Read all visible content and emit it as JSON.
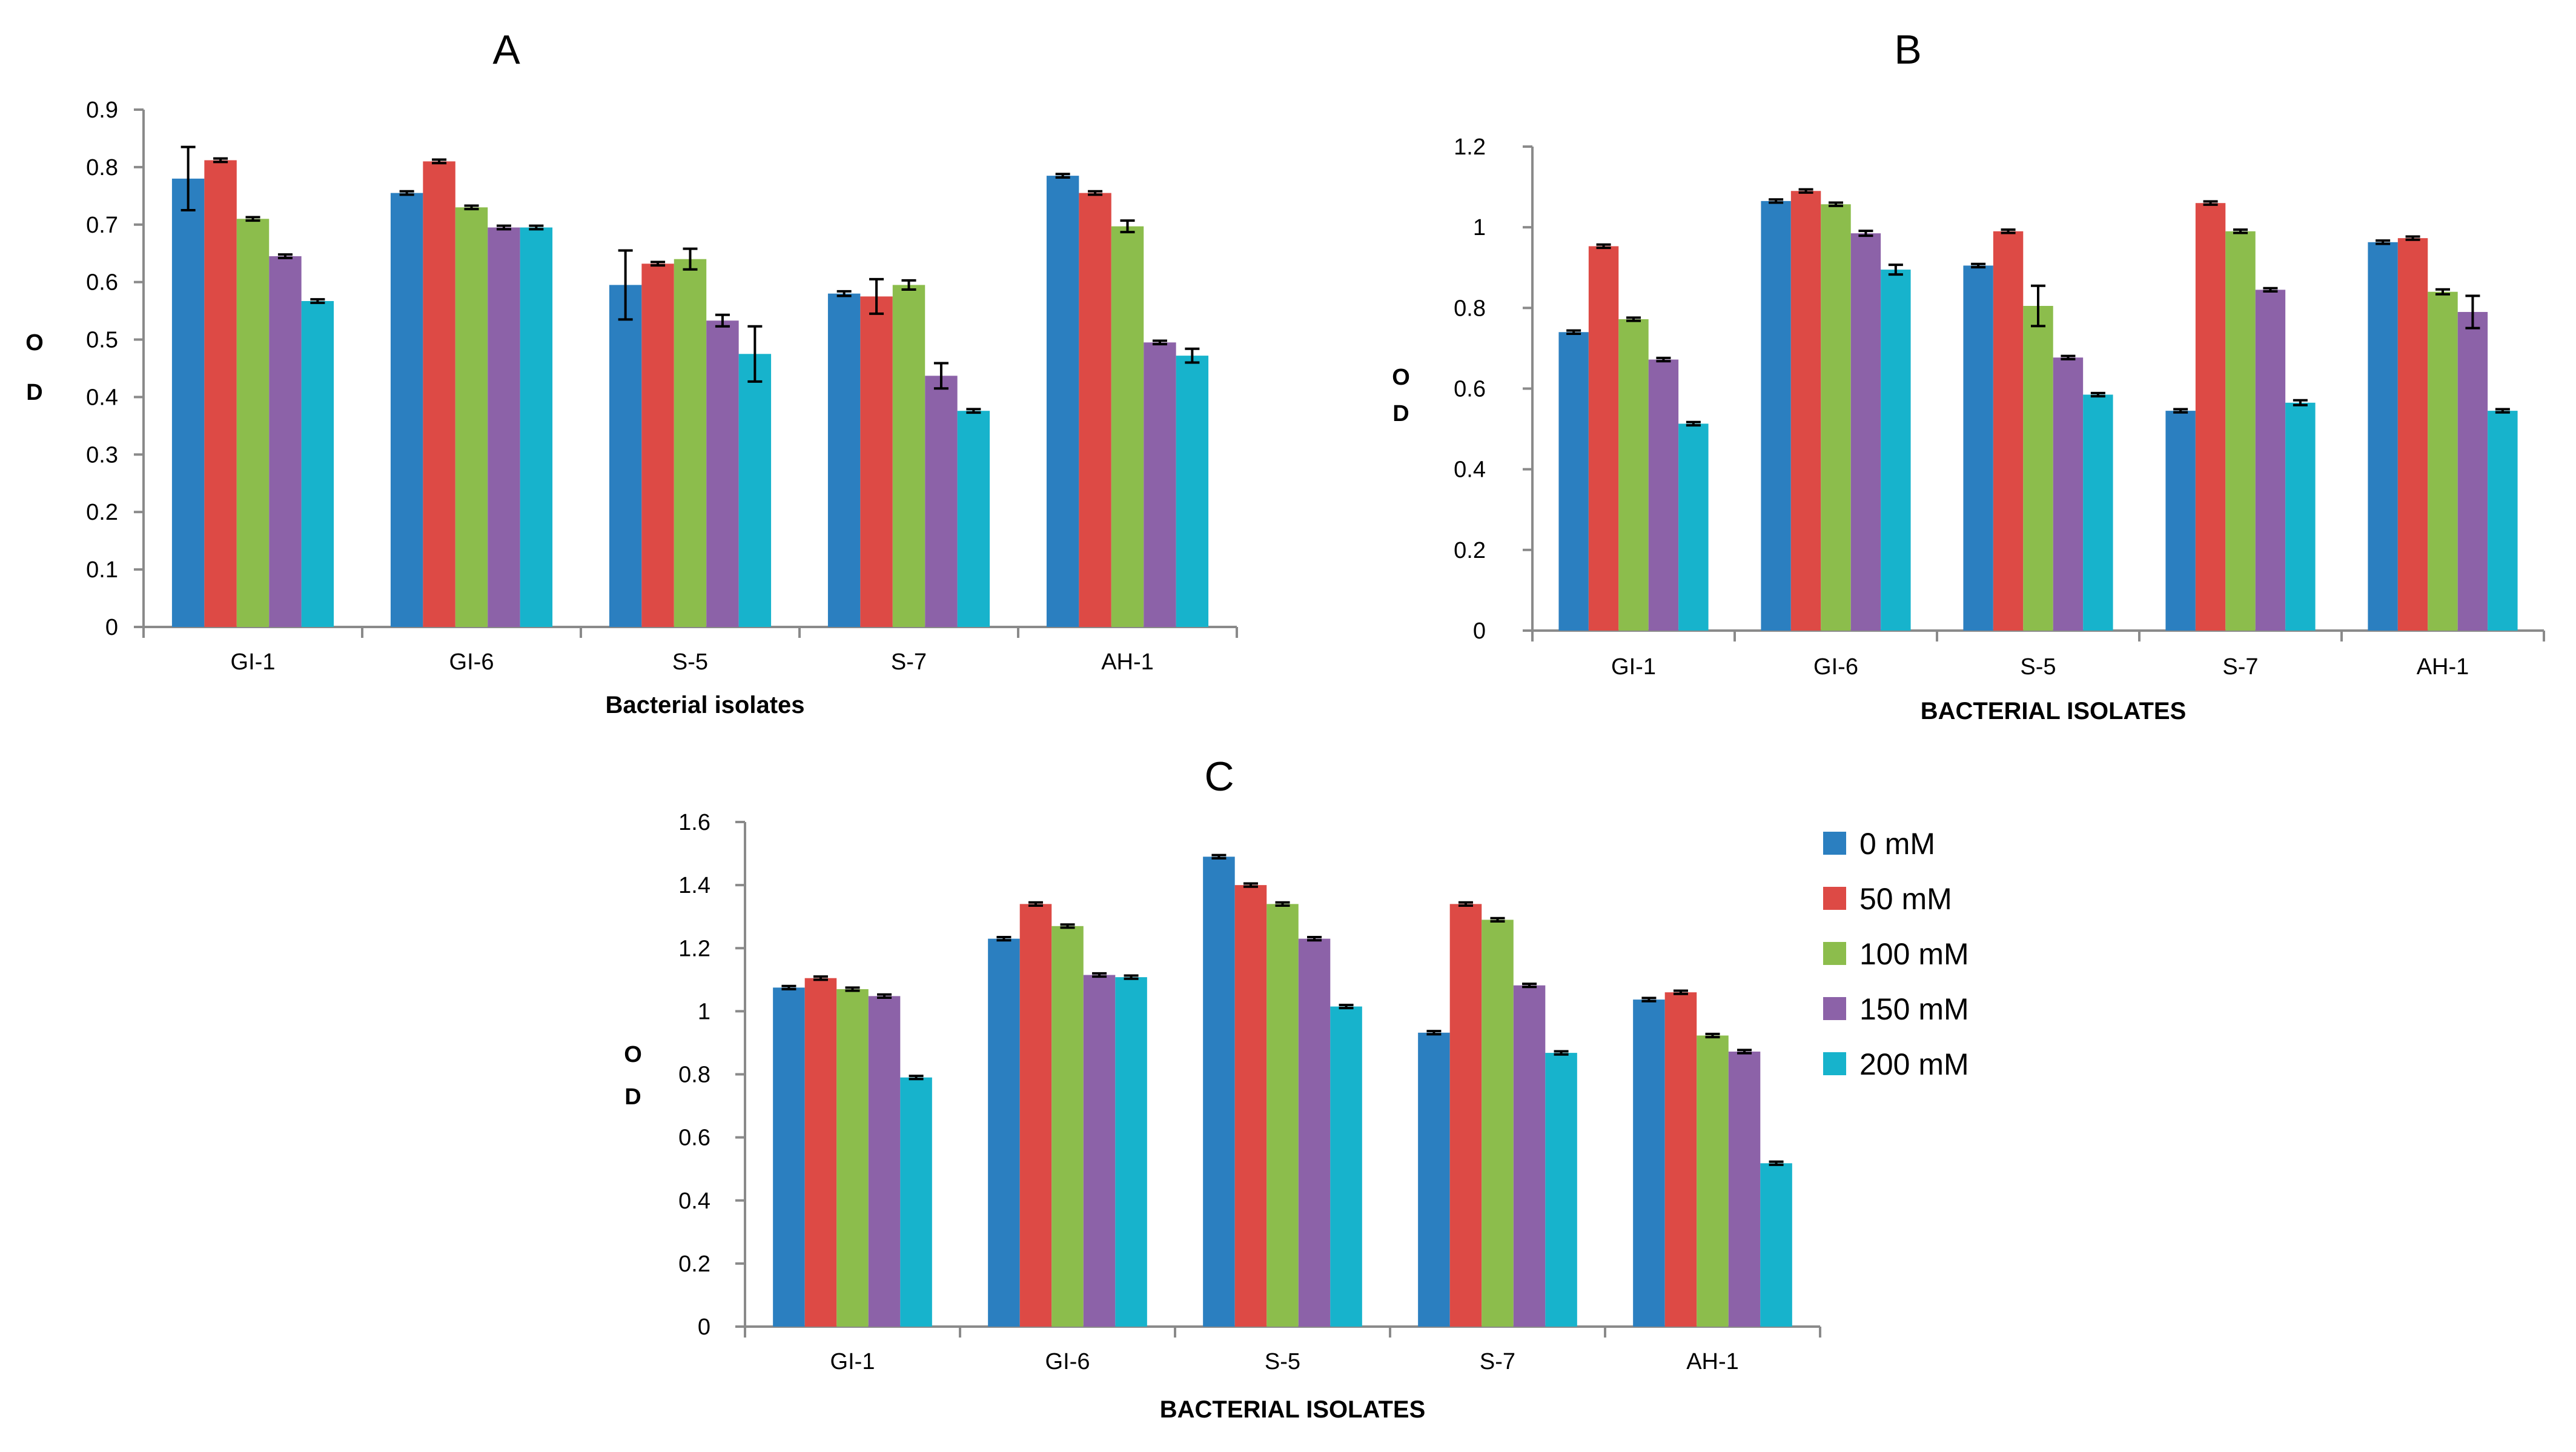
{
  "colors": {
    "series": [
      "#2b7fc0",
      "#dd4a45",
      "#8cbd4c",
      "#8c62a8",
      "#17b3cc"
    ],
    "axis": "#8a8a8a",
    "errorbar": "#000000"
  },
  "legend": {
    "placement": "right of panel C",
    "items": [
      "0 mM",
      "50 mM",
      "100 mM",
      "150 mM",
      "200 mM"
    ]
  },
  "chart_data": [
    {
      "panel": "A",
      "type": "bar",
      "xlabel": "Bacterial isolates",
      "ylabel": [
        "O",
        "D"
      ],
      "ylim": [
        0,
        0.9
      ],
      "yticks": [
        "0",
        "0.1",
        "0.2",
        "0.3",
        "0.4",
        "0.5",
        "0.6",
        "0.7",
        "0.8",
        "0.9"
      ],
      "categories": [
        "GI-1",
        "GI-6",
        "S-5",
        "S-7",
        "AH-1"
      ],
      "series": [
        {
          "name": "0 mM",
          "values": [
            0.78,
            0.755,
            0.595,
            0.58,
            0.785
          ],
          "errors": [
            0.055,
            0.003,
            0.06,
            0.004,
            0.003
          ]
        },
        {
          "name": "50 mM",
          "values": [
            0.812,
            0.81,
            0.632,
            0.575,
            0.755
          ],
          "errors": [
            0.003,
            0.003,
            0.003,
            0.03,
            0.003
          ]
        },
        {
          "name": "100 mM",
          "values": [
            0.71,
            0.73,
            0.64,
            0.595,
            0.697
          ],
          "errors": [
            0.003,
            0.003,
            0.018,
            0.008,
            0.01
          ]
        },
        {
          "name": "150 mM",
          "values": [
            0.645,
            0.695,
            0.533,
            0.437,
            0.495
          ],
          "errors": [
            0.003,
            0.003,
            0.01,
            0.022,
            0.003
          ]
        },
        {
          "name": "200 mM",
          "values": [
            0.567,
            0.695,
            0.475,
            0.376,
            0.472
          ],
          "errors": [
            0.003,
            0.003,
            0.048,
            0.003,
            0.012
          ]
        }
      ]
    },
    {
      "panel": "B",
      "type": "bar",
      "xlabel": "BACTERIAL ISOLATES",
      "ylabel": [
        "O",
        "D"
      ],
      "ylim": [
        0,
        1.2
      ],
      "yticks": [
        "0",
        "0.2",
        "0.4",
        "0.6",
        "0.8",
        "1",
        "1.2"
      ],
      "categories": [
        "GI-1",
        "GI-6",
        "S-5",
        "S-7",
        "AH-1"
      ],
      "series": [
        {
          "name": "0 mM",
          "values": [
            0.74,
            1.065,
            0.905,
            0.545,
            0.963
          ],
          "errors": [
            0.004,
            0.004,
            0.004,
            0.004,
            0.004
          ]
        },
        {
          "name": "50 mM",
          "values": [
            0.953,
            1.09,
            0.99,
            1.06,
            0.973
          ],
          "errors": [
            0.004,
            0.004,
            0.004,
            0.004,
            0.004
          ]
        },
        {
          "name": "100 mM",
          "values": [
            0.772,
            1.057,
            0.805,
            0.99,
            0.84
          ],
          "errors": [
            0.004,
            0.004,
            0.05,
            0.004,
            0.006
          ]
        },
        {
          "name": "150 mM",
          "values": [
            0.672,
            0.985,
            0.677,
            0.845,
            0.79
          ],
          "errors": [
            0.004,
            0.006,
            0.004,
            0.004,
            0.04
          ]
        },
        {
          "name": "200 mM",
          "values": [
            0.513,
            0.895,
            0.585,
            0.565,
            0.545
          ],
          "errors": [
            0.004,
            0.012,
            0.004,
            0.006,
            0.004
          ]
        }
      ]
    },
    {
      "panel": "C",
      "type": "bar",
      "xlabel": "BACTERIAL ISOLATES",
      "ylabel": [
        "O",
        "D"
      ],
      "ylim": [
        0,
        1.6
      ],
      "yticks": [
        "0",
        "0.2",
        "0.4",
        "0.6",
        "0.8",
        "1",
        "1.2",
        "1.4",
        "1.6"
      ],
      "categories": [
        "GI-1",
        "GI-6",
        "S-5",
        "S-7",
        "AH-1"
      ],
      "series": [
        {
          "name": "0 mM",
          "values": [
            1.075,
            1.23,
            1.49,
            0.932,
            1.037
          ],
          "errors": [
            0.005,
            0.005,
            0.005,
            0.005,
            0.005
          ]
        },
        {
          "name": "50 mM",
          "values": [
            1.105,
            1.34,
            1.4,
            1.34,
            1.06
          ],
          "errors": [
            0.005,
            0.005,
            0.005,
            0.005,
            0.005
          ]
        },
        {
          "name": "100 mM",
          "values": [
            1.07,
            1.27,
            1.34,
            1.29,
            0.923
          ],
          "errors": [
            0.005,
            0.005,
            0.005,
            0.005,
            0.005
          ]
        },
        {
          "name": "150 mM",
          "values": [
            1.048,
            1.115,
            1.23,
            1.082,
            0.872
          ],
          "errors": [
            0.005,
            0.005,
            0.005,
            0.005,
            0.005
          ]
        },
        {
          "name": "200 mM",
          "values": [
            0.79,
            1.108,
            1.015,
            0.868,
            0.518
          ],
          "errors": [
            0.005,
            0.005,
            0.005,
            0.005,
            0.005
          ]
        }
      ]
    }
  ]
}
